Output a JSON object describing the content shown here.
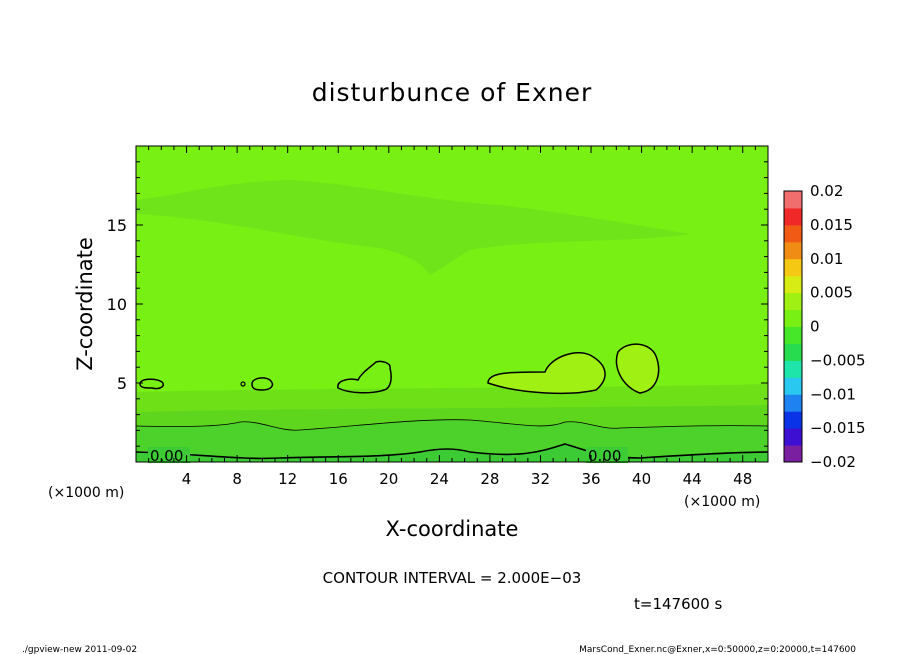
{
  "chart_data": {
    "type": "heatmap",
    "title": "disturbunce of Exner",
    "xlabel": "X-coordinate",
    "ylabel": "Z-coordinate",
    "x_unit": "(×1000 m)",
    "y_unit": "(×1000 m)",
    "xlim": [
      0,
      50
    ],
    "ylim": [
      0,
      20
    ],
    "x_ticks": [
      "4",
      "8",
      "12",
      "16",
      "20",
      "24",
      "28",
      "32",
      "36",
      "40",
      "44",
      "48"
    ],
    "y_ticks": [
      "5",
      "10",
      "15"
    ],
    "colorbar": {
      "labels": [
        "0.02",
        "0.015",
        "0.01",
        "0.005",
        "0",
        "−0.005",
        "−0.01",
        "−0.015",
        "−0.02"
      ],
      "range": [
        -0.02,
        0.02
      ],
      "colors": [
        "#7a1fa0",
        "#3c0fd2",
        "#0a32e6",
        "#1e82f0",
        "#28c8f0",
        "#1ee6aa",
        "#28dc50",
        "#46e628",
        "#78f014",
        "#a0f014",
        "#d7eb14",
        "#f5c814",
        "#f08c14",
        "#f05a14",
        "#f02828",
        "#f06e6e"
      ]
    },
    "contour_labels": [
      "0.00",
      "0.00"
    ],
    "contour_interval_text": "CONTOUR INTERVAL = 2.000E−03",
    "time_text": "t=147600 s"
  },
  "footer": {
    "left": "./gpview-new   2011-09-02",
    "right": "MarsCond_Exner.nc@Exner,x=0:50000,z=0:20000,t=147600"
  }
}
